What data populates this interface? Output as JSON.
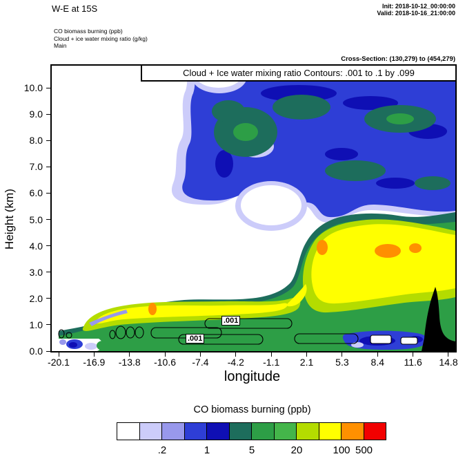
{
  "header": {
    "title": "W-E at 15S",
    "init_line": "Init: 2018-10-12_00:00:00",
    "valid_line": "Valid: 2018-10-16_21:00:00",
    "layer_lines": [
      "CO biomass burning   (ppb)",
      "Cloud + ice water mixing ratio   (g/kg)",
      "Main"
    ],
    "cross_section": "Cross-Section: (130,279) to (454,279)"
  },
  "plot": {
    "contour_title": "Cloud + Ice water mixing ratio Contours: .001 to .1 by .099",
    "xlabel": "longitude",
    "ylabel": "Height (km)",
    "x_ticks": [
      "-20.1",
      "-16.9",
      "-13.8",
      "-10.6",
      "-7.4",
      "-4.2",
      "-1.1",
      "2.1",
      "5.3",
      "8.4",
      "11.6",
      "14.8"
    ],
    "y_ticks": [
      "10.0",
      "9.0",
      "8.0",
      "7.0",
      "6.0",
      "5.0",
      "4.0",
      "3.0",
      "2.0",
      "1.0",
      "0.0"
    ],
    "contour_labels": [
      ".001",
      ".001"
    ]
  },
  "colorbar": {
    "title": "CO biomass burning  (ppb)",
    "colors": [
      "#ffffff",
      "#ccccfa",
      "#9898ec",
      "#2e3ed6",
      "#0f0fb4",
      "#1d6d5c",
      "#2d9e46",
      "#44b54a",
      "#b4dc00",
      "#ffff00",
      "#ff9000",
      "#f20000"
    ],
    "tick_labels": [
      ".2",
      "1",
      "5",
      "20",
      "100",
      "500"
    ],
    "tick_positions": [
      2,
      4,
      6,
      8,
      10,
      11
    ]
  },
  "chart_data": {
    "type": "heatmap",
    "title": "Cloud + Ice water mixing ratio Contours: .001 to .1 by .099",
    "subtitle": "W-E vertical cross-section at 15S",
    "xlabel": "longitude",
    "ylabel": "Height (km)",
    "xlim": [
      -20.1,
      14.8
    ],
    "ylim": [
      0,
      10.45
    ],
    "x_ticks": [
      -20.1,
      -16.9,
      -13.8,
      -10.6,
      -7.4,
      -4.2,
      -1.1,
      2.1,
      5.3,
      8.4,
      11.6,
      14.8
    ],
    "y_ticks": [
      0,
      1,
      2,
      3,
      4,
      5,
      6,
      7,
      8,
      9,
      10
    ],
    "fill_variable": "CO biomass burning (ppb)",
    "fill_levels": [
      0.1,
      0.2,
      0.5,
      1,
      2,
      5,
      10,
      20,
      50,
      100,
      500
    ],
    "fill_colors": [
      "#ffffff",
      "#ccccfa",
      "#9898ec",
      "#2e3ed6",
      "#0f0fb4",
      "#1d6d5c",
      "#2d9e46",
      "#44b54a",
      "#b4dc00",
      "#ffff00",
      "#ff9000",
      "#f20000"
    ],
    "grid_note": "values_ppb rows are heights 10,9,8,7,6,5,4,3,2,1,0 km; columns are the 12 longitude ticks; values estimated from fill colors",
    "values_ppb": [
      [
        0.05,
        0.05,
        0.05,
        0.05,
        0.15,
        0.7,
        1.5,
        1.5,
        0.7,
        1.5,
        3,
        1.5
      ],
      [
        0.05,
        0.05,
        0.05,
        0.05,
        0.3,
        3,
        1.5,
        0.7,
        1.5,
        3,
        3,
        1.5
      ],
      [
        0.05,
        0.05,
        0.05,
        0.15,
        1.5,
        3,
        1.5,
        1.5,
        3,
        3,
        1.5,
        1.5
      ],
      [
        0.05,
        0.05,
        0.05,
        0.15,
        3,
        0.7,
        1.5,
        1.5,
        1.5,
        1.5,
        1.5,
        0.7
      ],
      [
        0.05,
        0.05,
        0.05,
        0.05,
        1.5,
        1.5,
        0.3,
        1.5,
        3,
        3,
        1.5,
        1.5
      ],
      [
        0.05,
        0.05,
        0.05,
        0.05,
        0.3,
        0.7,
        0.05,
        1.5,
        3,
        7,
        3,
        1.5
      ],
      [
        0.05,
        0.05,
        0.05,
        0.15,
        0.3,
        0.3,
        3,
        70,
        70,
        150,
        70,
        30
      ],
      [
        0.05,
        0.15,
        0.7,
        1.5,
        3,
        7,
        15,
        70,
        70,
        70,
        70,
        30
      ],
      [
        0.3,
        3,
        7,
        30,
        30,
        15,
        15,
        30,
        30,
        30,
        15,
        7
      ],
      [
        1.5,
        7,
        70,
        70,
        70,
        70,
        30,
        15,
        7,
        3,
        3,
        0.5
      ],
      [
        0.7,
        3,
        7,
        15,
        15,
        15,
        15,
        7,
        3,
        1.5,
        0.5,
        0
      ]
    ],
    "overlay_contour": {
      "variable": "Cloud + Ice water mixing ratio (g/kg)",
      "levels": [
        0.001,
        0.1
      ],
      "labeled_value": ".001",
      "label_points": [
        {
          "lon": -4.5,
          "km": 1.1
        },
        {
          "lon": -7.7,
          "km": 0.45
        }
      ]
    },
    "terrain": {
      "color": "#000000",
      "note": "black terrain mask near lon 13 to 14.8 below ~2.3 km"
    },
    "hotspots_over_100ppb": [
      {
        "lon": 2.3,
        "km": 3.9
      },
      {
        "lon": 8.3,
        "km": 3.8
      },
      {
        "lon": 10.0,
        "km": 3.9
      },
      {
        "lon": -11.5,
        "km": 1.6
      }
    ],
    "legend_position": "bottom",
    "grid": false
  }
}
